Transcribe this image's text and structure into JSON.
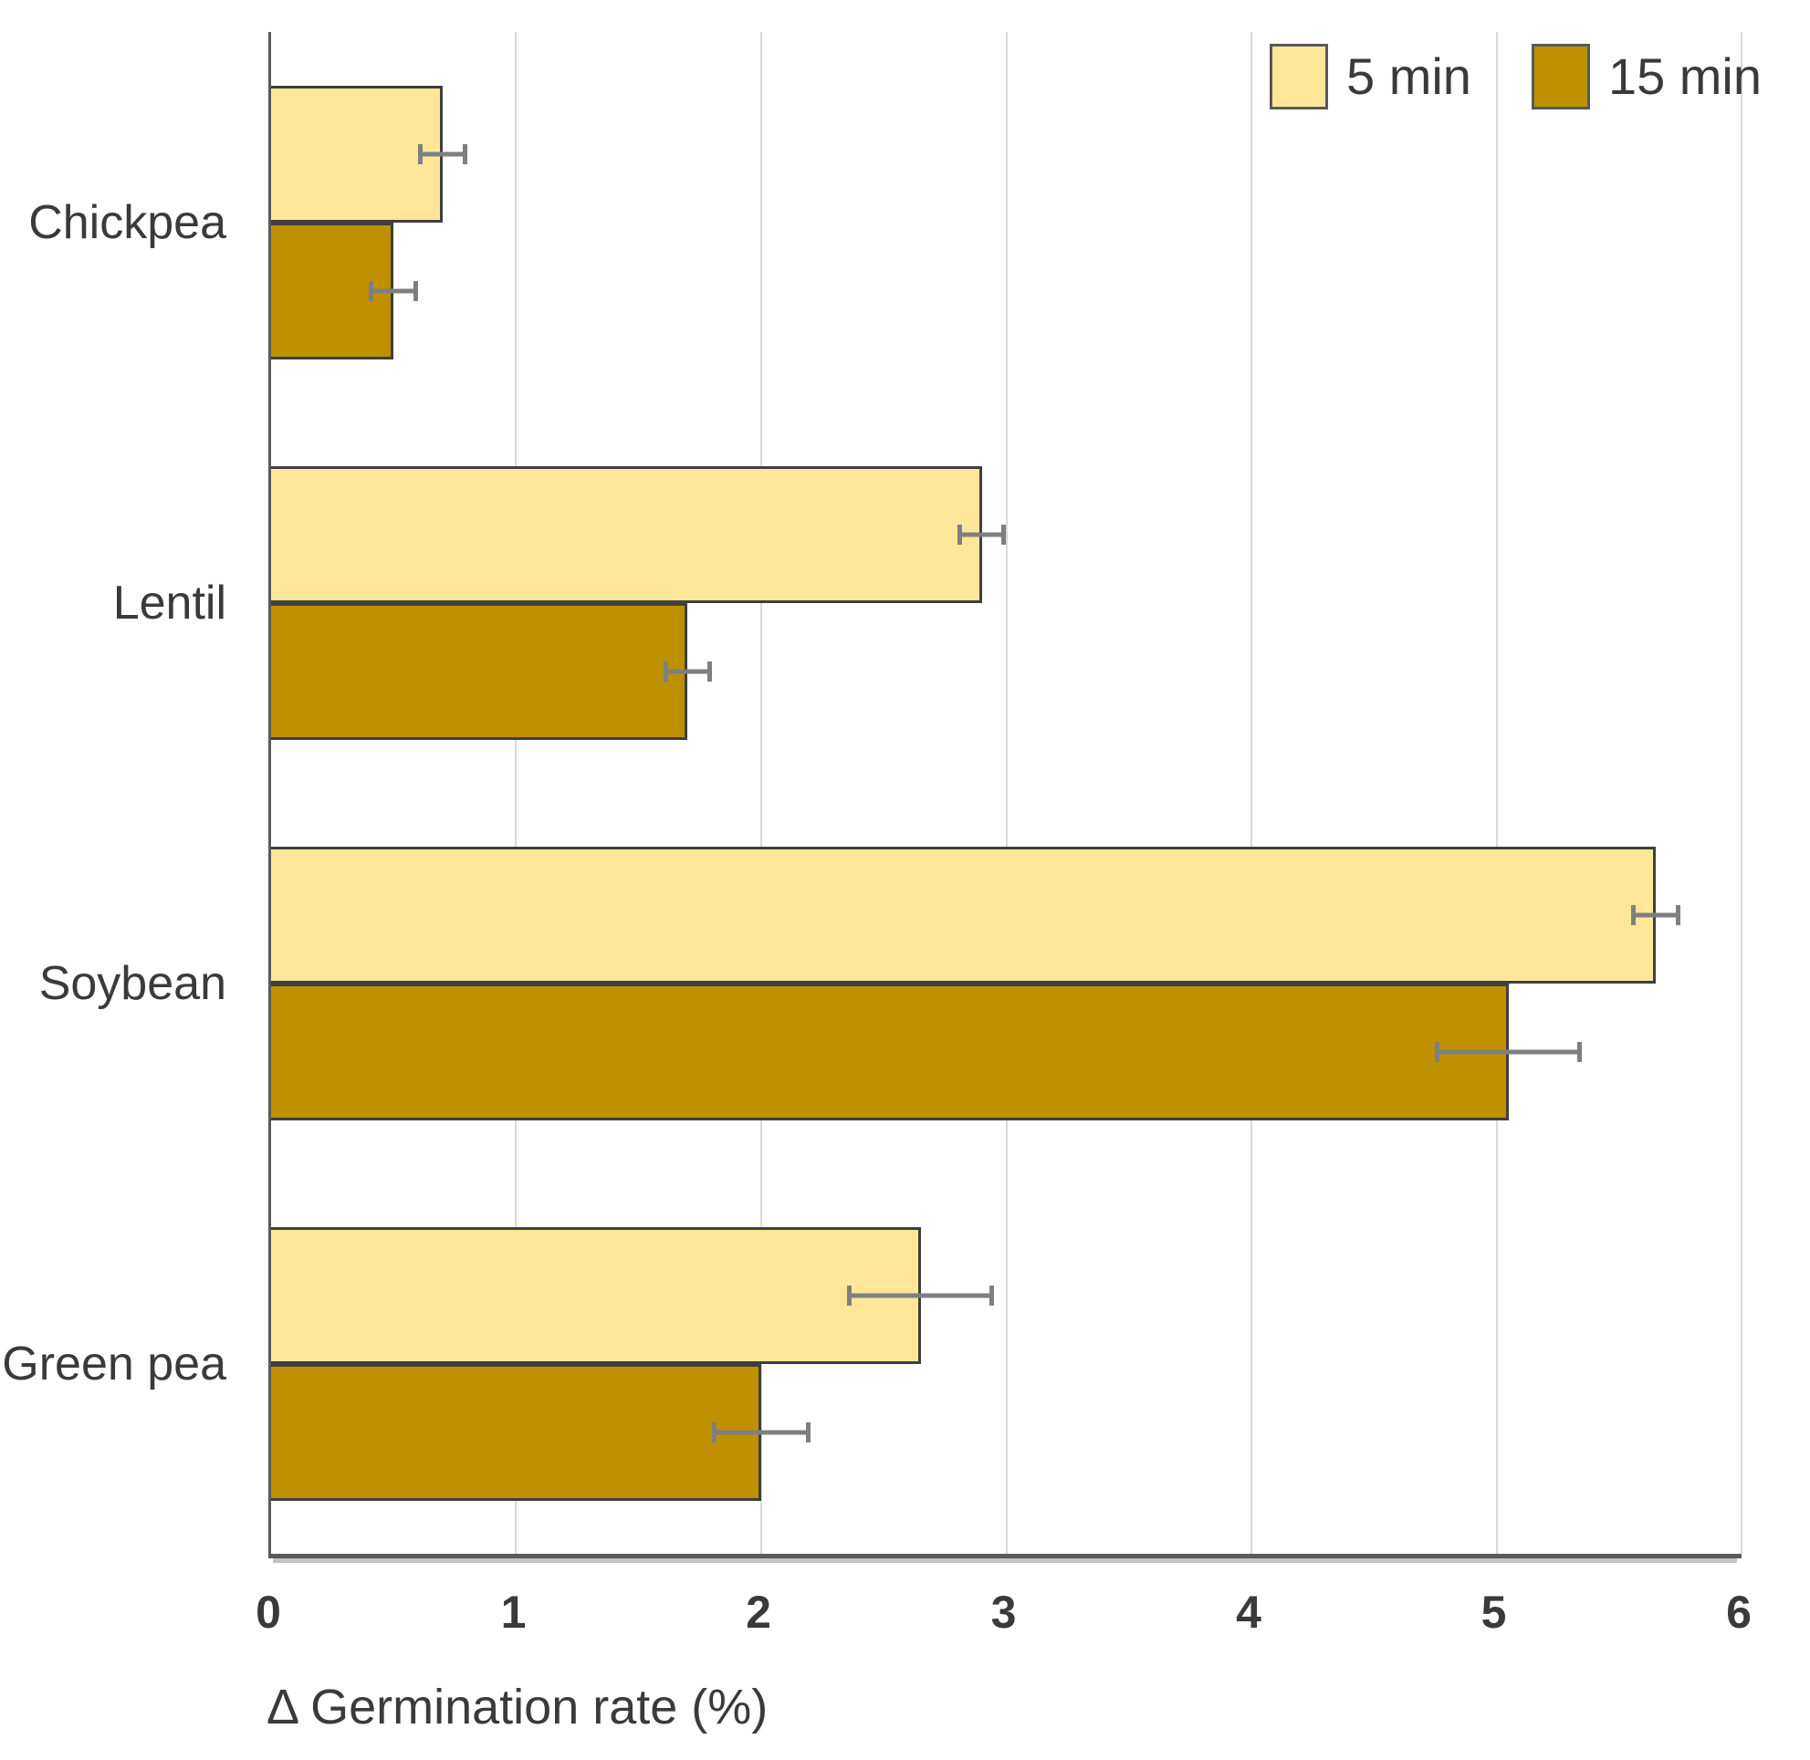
{
  "chart_data": {
    "type": "bar",
    "orientation": "horizontal",
    "title": "",
    "xlabel": "Δ Germination rate (%)",
    "ylabel": "",
    "xlim": [
      0,
      6
    ],
    "xticks": [
      0,
      1,
      2,
      3,
      4,
      5,
      6
    ],
    "grid": true,
    "error_bars": true,
    "legend_position": "top-right",
    "categories": [
      "Chickpea",
      "Lentil",
      "Soybean",
      "Green pea"
    ],
    "series": [
      {
        "name": "5 min",
        "color": "#FFE699",
        "values": [
          0.7,
          2.9,
          5.65,
          2.65
        ],
        "errors": [
          0.1,
          0.1,
          0.1,
          0.3
        ]
      },
      {
        "name": "15 min",
        "color": "#BF9000",
        "values": [
          0.5,
          1.7,
          5.05,
          2.0
        ],
        "errors": [
          0.1,
          0.1,
          0.3,
          0.2
        ]
      }
    ]
  },
  "style": {
    "bar_border_color": "#3F3F3F",
    "grid_color": "#D9D9D9",
    "axis_color": "#595959",
    "error_bar_color": "#7F7F7F",
    "text_color": "#3A3A3A",
    "background": "#FFFFFF"
  }
}
